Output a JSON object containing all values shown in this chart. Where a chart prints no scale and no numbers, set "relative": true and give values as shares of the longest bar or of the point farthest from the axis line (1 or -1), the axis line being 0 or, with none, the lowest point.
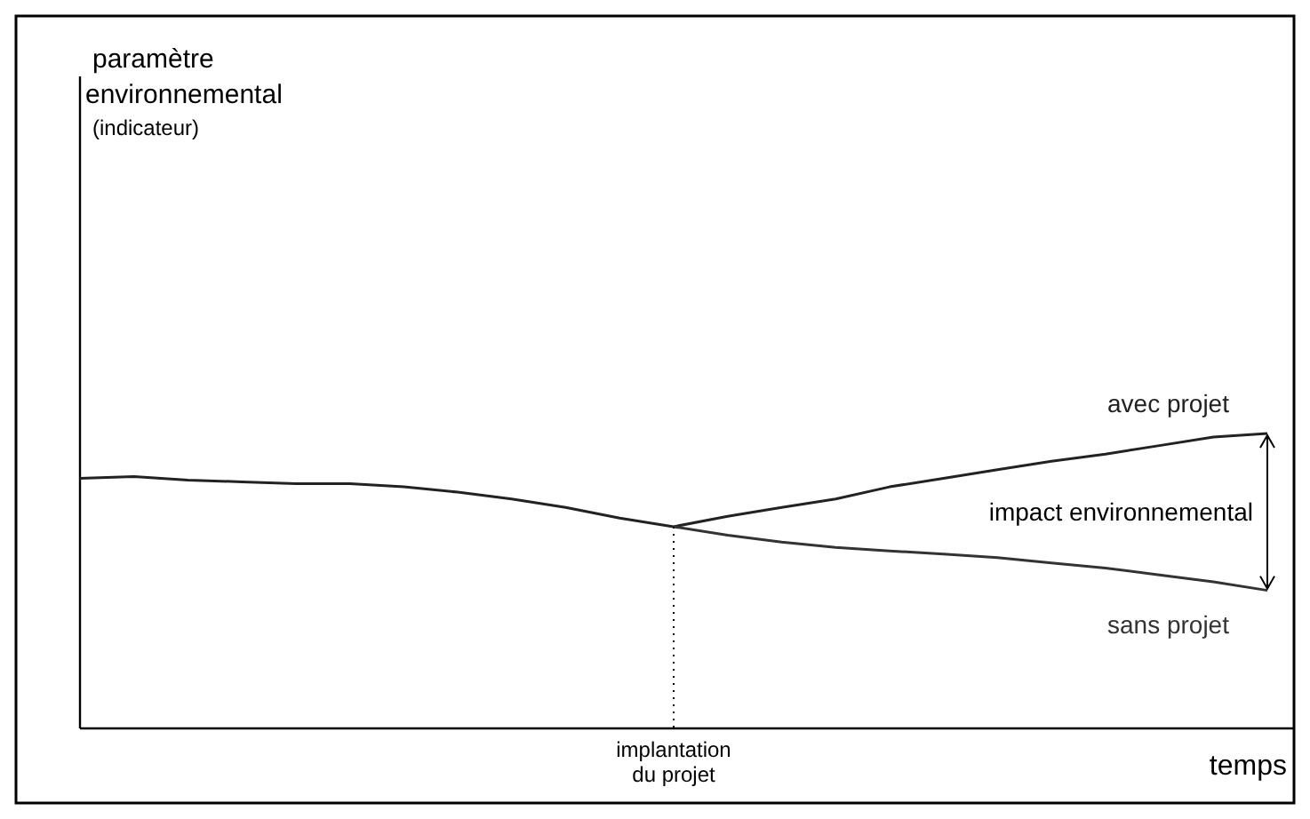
{
  "chart_data": {
    "type": "line",
    "relative": true,
    "xlabel": "temps",
    "categories": [
      null,
      null,
      null,
      null,
      null,
      null,
      null,
      null,
      null,
      null,
      null,
      null,
      null,
      null,
      null,
      null,
      null,
      null,
      null,
      null,
      null,
      null,
      null
    ],
    "series": [
      {
        "name": "avec projet",
        "color": "#222222",
        "values": [
          0.848,
          0.854,
          0.842,
          0.836,
          0.83,
          0.83,
          0.819,
          0.801,
          0.778,
          0.749,
          0.713,
          0.684,
          0.719,
          0.749,
          0.778,
          0.819,
          0.848,
          0.877,
          0.906,
          0.93,
          0.959,
          0.988,
          1.0
        ]
      },
      {
        "name": "sans projet",
        "color": "#333333",
        "values": [
          null,
          null,
          null,
          null,
          null,
          null,
          null,
          null,
          null,
          null,
          null,
          0.684,
          0.655,
          0.632,
          0.614,
          0.602,
          0.591,
          0.579,
          0.561,
          0.544,
          0.52,
          0.497,
          0.468
        ]
      }
    ],
    "ref_lines": [
      {
        "axis": "x",
        "label": "implantation du projet",
        "line_style": "dotted"
      }
    ],
    "annotations": [
      "impact environnemental",
      "paramètre environnemental (indicateur)"
    ],
    "legend": false,
    "marker": "none",
    "line_style": "solid"
  }
}
